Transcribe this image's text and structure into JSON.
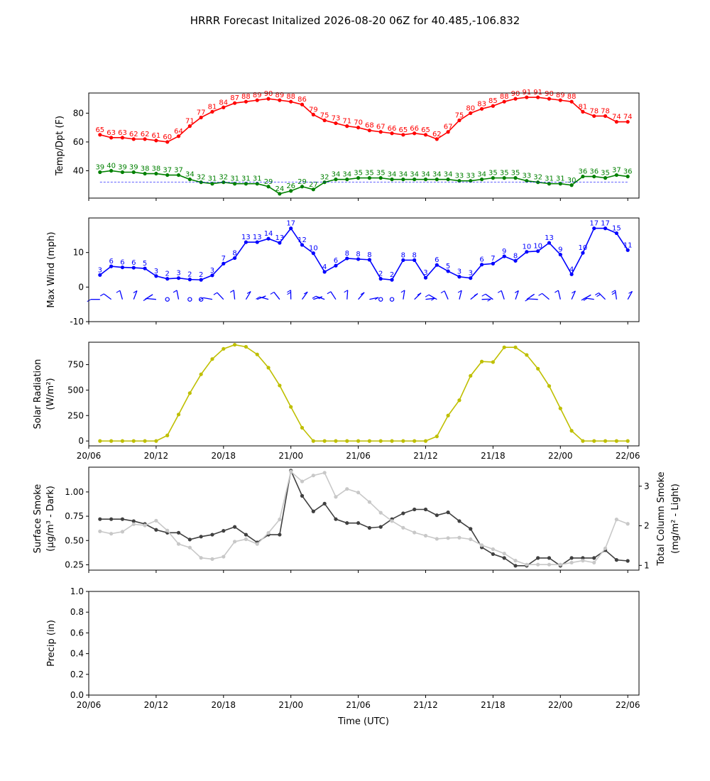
{
  "figure": {
    "title": "HRRR Forecast Initalized 2026-08-20 06Z for 40.485,-106.832",
    "xlabel": "Time (UTC)",
    "x_tick_labels": [
      "20/06",
      "20/12",
      "20/18",
      "21/00",
      "21/06",
      "21/12",
      "21/18",
      "22/00",
      "22/06"
    ]
  },
  "chart_data": [
    {
      "type": "line",
      "id": "temp",
      "ylabel": "Temp/Dpt (F)",
      "yticks": [
        40,
        60,
        80
      ],
      "ylim": [
        21,
        94
      ],
      "x_hours_range": [
        0,
        49
      ],
      "x": [
        1,
        2,
        3,
        4,
        5,
        6,
        7,
        8,
        9,
        10,
        11,
        12,
        13,
        14,
        15,
        16,
        17,
        18,
        19,
        20,
        21,
        22,
        23,
        24,
        25,
        26,
        27,
        28,
        29,
        30,
        31,
        32,
        33,
        34,
        35,
        36,
        37,
        38,
        39,
        40,
        41,
        42,
        43,
        44,
        45,
        46,
        47,
        48
      ],
      "series": [
        {
          "role": "temperature",
          "color": "#ff0000",
          "show_labels": true,
          "values": [
            65,
            63,
            63,
            62,
            62,
            61,
            60,
            64,
            71,
            77,
            81,
            84,
            87,
            88,
            89,
            90,
            89,
            88,
            86,
            79,
            75,
            73,
            71,
            70,
            68,
            67,
            66,
            65,
            66,
            65,
            62,
            67,
            75,
            80,
            83,
            85,
            88,
            90,
            91,
            91,
            90,
            89,
            88,
            81,
            78,
            78,
            74,
            74
          ]
        },
        {
          "role": "dewpoint",
          "color": "#008000",
          "show_labels": true,
          "values": [
            39,
            40,
            39,
            39,
            38,
            38,
            37,
            37,
            34,
            32,
            31,
            32,
            31,
            31,
            31,
            29,
            24,
            26,
            29,
            27,
            32,
            34,
            34,
            35,
            35,
            35,
            34,
            34,
            34,
            34,
            34,
            34,
            33,
            33,
            34,
            35,
            35,
            35,
            33,
            32,
            31,
            31,
            30,
            36,
            36,
            35,
            37,
            36
          ]
        }
      ],
      "reference_line": {
        "y": 32,
        "color": "#0000ff",
        "style": "dashed"
      }
    },
    {
      "type": "line",
      "id": "wind",
      "ylabel": "Max Wind (mph)",
      "yticks": [
        -10,
        0,
        10
      ],
      "ylim": [
        -10,
        20
      ],
      "x": [
        1,
        2,
        3,
        4,
        5,
        6,
        7,
        8,
        9,
        10,
        11,
        12,
        13,
        14,
        15,
        16,
        17,
        18,
        19,
        20,
        21,
        22,
        23,
        24,
        25,
        26,
        27,
        28,
        29,
        30,
        31,
        32,
        33,
        34,
        35,
        36,
        37,
        38,
        39,
        40,
        41,
        42,
        43,
        44,
        45,
        46,
        47,
        48
      ],
      "series": [
        {
          "role": "max_wind",
          "color": "#0000ff",
          "show_labels": true,
          "values": [
            3,
            6,
            6,
            6,
            5,
            3,
            2,
            3,
            2,
            2,
            3,
            7,
            8,
            13,
            13,
            14,
            13,
            17,
            12,
            10,
            4,
            6,
            8,
            8,
            8,
            2,
            2,
            8,
            8,
            3,
            6,
            5,
            3,
            3,
            6,
            7,
            9,
            8,
            10,
            10,
            13,
            9,
            4,
            10,
            17,
            17,
            15,
            11
          ],
          "plot_values": [
            3.5,
            6,
            5.7,
            5.6,
            5.4,
            3.2,
            2.4,
            2.6,
            2.2,
            2.1,
            3.4,
            6.8,
            8.4,
            13,
            13,
            14,
            12.8,
            17,
            12.2,
            9.8,
            4.4,
            6.2,
            8.3,
            8.1,
            7.9,
            2.4,
            2.1,
            7.8,
            7.8,
            2.7,
            6.4,
            4.6,
            3,
            2.6,
            6.5,
            6.8,
            8.9,
            7.6,
            10.2,
            10.4,
            12.8,
            9.4,
            3.7,
            9.9,
            17,
            17,
            15.6,
            10.7
          ]
        }
      ],
      "barbs": {
        "y": -5,
        "color": "#0000ff"
      }
    },
    {
      "type": "line",
      "id": "solar",
      "ylabel": "Solar Radiation",
      "ylabel_unit": "(W/m²)",
      "yticks": [
        0,
        250,
        500,
        750
      ],
      "ylim": [
        -48,
        970
      ],
      "x": [
        1,
        2,
        3,
        4,
        5,
        6,
        7,
        8,
        9,
        10,
        11,
        12,
        13,
        14,
        15,
        16,
        17,
        18,
        19,
        20,
        21,
        22,
        23,
        24,
        25,
        26,
        27,
        28,
        29,
        30,
        31,
        32,
        33,
        34,
        35,
        36,
        37,
        38,
        39,
        40,
        41,
        42,
        43,
        44,
        45,
        46,
        47,
        48
      ],
      "series": [
        {
          "role": "solar_radiation",
          "color": "#bfbf00",
          "values": [
            0,
            0,
            0,
            0,
            0,
            0,
            55,
            260,
            470,
            655,
            805,
            905,
            945,
            925,
            850,
            720,
            545,
            335,
            130,
            0,
            0,
            0,
            0,
            0,
            0,
            0,
            0,
            0,
            0,
            0,
            45,
            250,
            400,
            640,
            780,
            775,
            920,
            920,
            845,
            710,
            540,
            320,
            100,
            0,
            0,
            0,
            0,
            0
          ]
        }
      ]
    },
    {
      "type": "line",
      "id": "smoke",
      "ylabel": "Surface Smoke",
      "ylabel_unit": "(μg/m³ - Dark)",
      "ylabel_right": "Total Column Smoke",
      "ylabel_right_unit": "(mg/m² - Light)",
      "yticks": [
        0.25,
        0.5,
        0.75,
        1.0
      ],
      "ytick_labels": [
        "0.25",
        "0.50",
        "0.75",
        "1.00"
      ],
      "ylim": [
        0.195,
        1.255
      ],
      "yticks_right": [
        1,
        2,
        3
      ],
      "ylim_right": [
        0.88,
        3.48
      ],
      "x": [
        1,
        2,
        3,
        4,
        5,
        6,
        7,
        8,
        9,
        10,
        11,
        12,
        13,
        14,
        15,
        16,
        17,
        18,
        19,
        20,
        21,
        22,
        23,
        24,
        25,
        26,
        27,
        28,
        29,
        30,
        31,
        32,
        33,
        34,
        35,
        36,
        37,
        38,
        39,
        40,
        41,
        42,
        43,
        44,
        45,
        46,
        47,
        48
      ],
      "series": [
        {
          "role": "surface_smoke",
          "axis": "left",
          "color": "#404040",
          "values": [
            0.72,
            0.72,
            0.72,
            0.7,
            0.67,
            0.61,
            0.58,
            0.58,
            0.51,
            0.54,
            0.56,
            0.6,
            0.64,
            0.56,
            0.48,
            0.56,
            0.56,
            1.22,
            0.96,
            0.8,
            0.88,
            0.72,
            0.68,
            0.68,
            0.63,
            0.64,
            0.72,
            0.78,
            0.82,
            0.82,
            0.76,
            0.79,
            0.7,
            0.62,
            0.43,
            0.36,
            0.32,
            0.24,
            0.24,
            0.32,
            0.32,
            0.24,
            0.32,
            0.32,
            0.32,
            0.4,
            0.3,
            0.29
          ]
        },
        {
          "role": "total_column_smoke",
          "axis": "right",
          "color": "#c8c8c8",
          "values": [
            1.86,
            1.8,
            1.85,
            2.04,
            2.01,
            2.13,
            1.88,
            1.54,
            1.45,
            1.19,
            1.16,
            1.22,
            1.6,
            1.66,
            1.54,
            1.82,
            2.16,
            3.37,
            3.12,
            3.27,
            3.34,
            2.73,
            2.93,
            2.84,
            2.6,
            2.33,
            2.12,
            1.95,
            1.83,
            1.75,
            1.67,
            1.69,
            1.7,
            1.66,
            1.51,
            1.41,
            1.3,
            1.12,
            1.02,
            1.02,
            1.02,
            1.02,
            1.07,
            1.12,
            1.07,
            1.43,
            2.16,
            2.05
          ]
        }
      ]
    },
    {
      "type": "line",
      "id": "precip",
      "ylabel": "Precip (in)",
      "yticks": [
        0.0,
        0.2,
        0.4,
        0.6,
        0.8,
        1.0
      ],
      "ytick_labels": [
        "0.0",
        "0.2",
        "0.4",
        "0.6",
        "0.8",
        "1.0"
      ],
      "ylim": [
        0,
        1
      ],
      "series": []
    }
  ]
}
